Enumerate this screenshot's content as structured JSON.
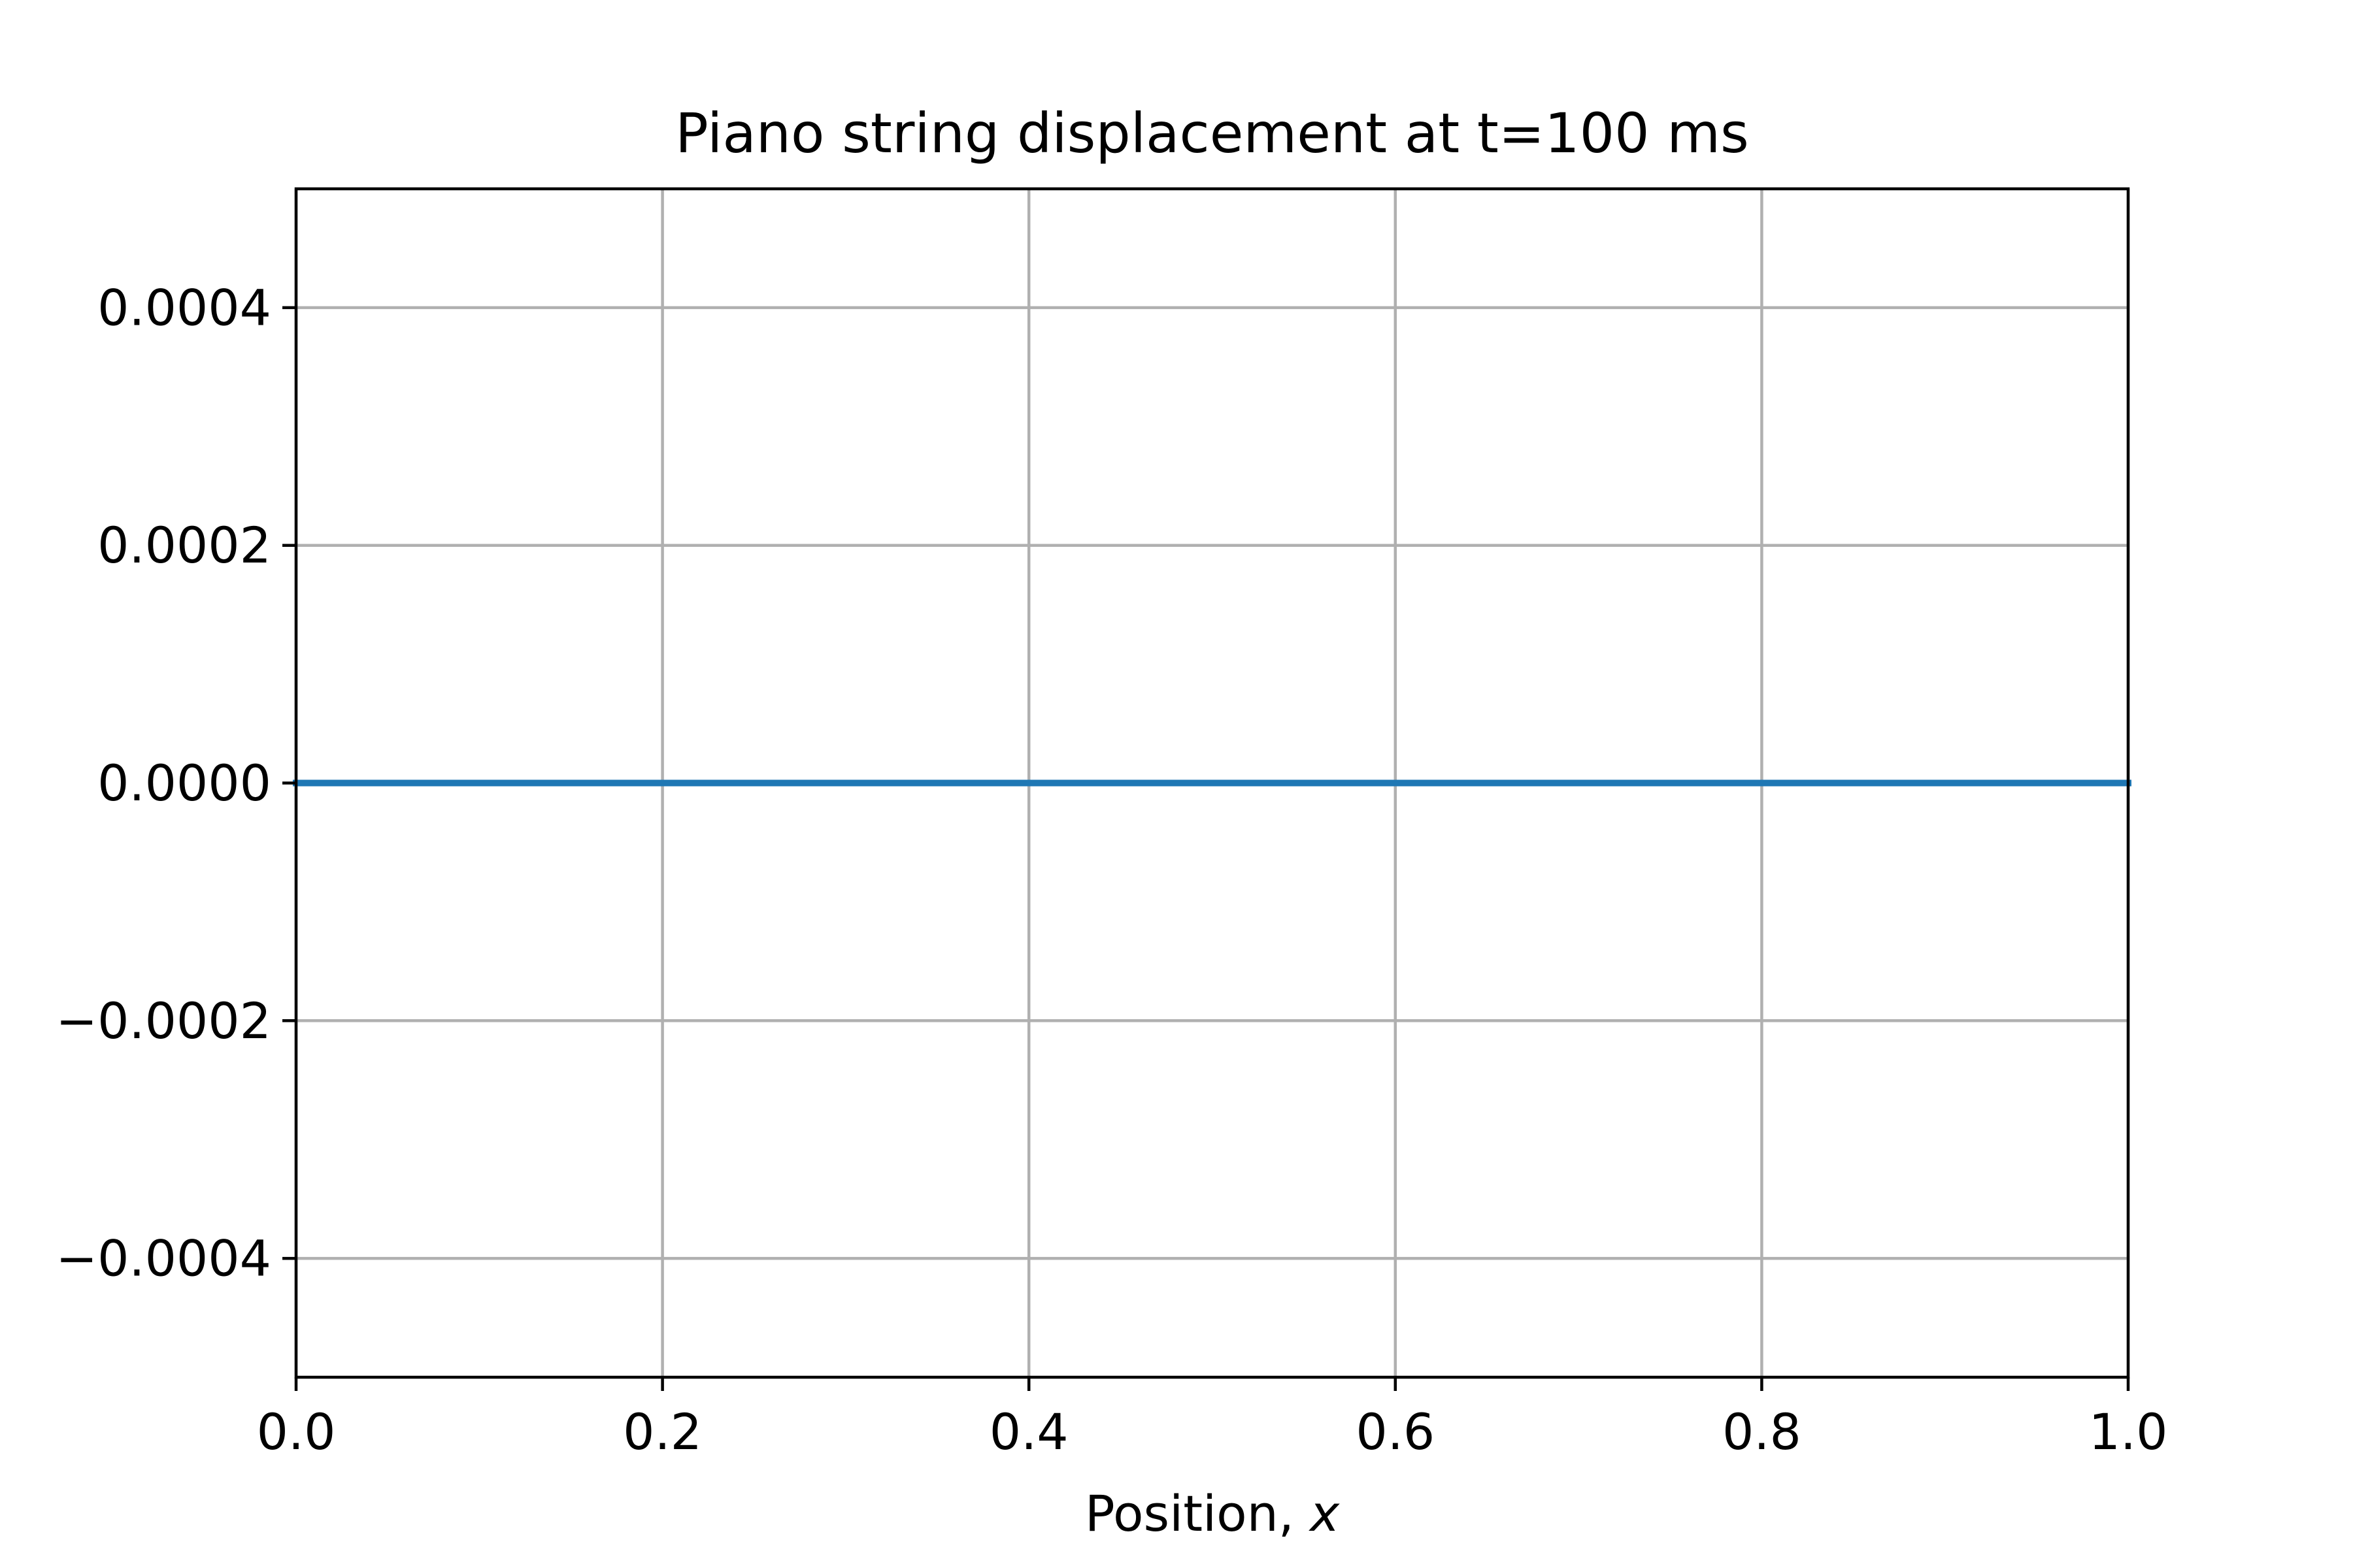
{
  "chart_data": {
    "type": "line",
    "title": "Piano string displacement at t=100 ms",
    "xlabel": "Position, ",
    "xlabel_var": "x",
    "ylabel": "",
    "xlim": [
      0.0,
      1.0
    ],
    "ylim": [
      -0.0005,
      0.0005
    ],
    "xticks": [
      0.0,
      0.2,
      0.4,
      0.6,
      0.8,
      1.0
    ],
    "xtick_labels": [
      "0.0",
      "0.2",
      "0.4",
      "0.6",
      "0.8",
      "1.0"
    ],
    "yticks": [
      -0.0004,
      -0.0002,
      0.0,
      0.0002,
      0.0004
    ],
    "ytick_labels": [
      "−0.0004",
      "−0.0002",
      "0.0000",
      "0.0002",
      "0.0004"
    ],
    "grid": true,
    "legend": false,
    "series": [
      {
        "color": "#1f77b4",
        "x": [
          0.0,
          0.1,
          0.2,
          0.3,
          0.4,
          0.5,
          0.6,
          0.7,
          0.8,
          0.9,
          1.0
        ],
        "y": [
          0.0,
          0.0,
          0.0,
          0.0,
          0.0,
          0.0,
          0.0,
          0.0,
          0.0,
          0.0,
          0.0
        ]
      }
    ]
  }
}
